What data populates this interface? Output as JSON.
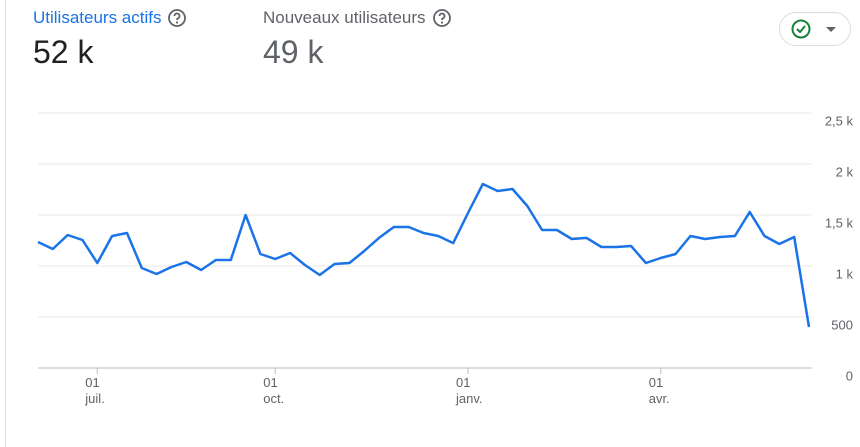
{
  "metrics": [
    {
      "label": "Utilisateurs actifs",
      "value": "52 k"
    },
    {
      "label": "Nouveaux utilisateurs",
      "value": "49 k"
    }
  ],
  "chart_data": {
    "type": "line",
    "categories": [
      null,
      null,
      null,
      null,
      "01\njuil.",
      null,
      null,
      null,
      null,
      null,
      null,
      null,
      null,
      null,
      null,
      null,
      "01\noct.",
      null,
      null,
      null,
      null,
      null,
      null,
      null,
      null,
      null,
      null,
      null,
      null,
      "01\njanv.",
      null,
      null,
      null,
      null,
      null,
      null,
      null,
      null,
      null,
      null,
      null,
      null,
      "01\navr.",
      null,
      null,
      null,
      null,
      null,
      null,
      null,
      null,
      null,
      null
    ],
    "series": [
      {
        "name": "Utilisateurs actifs",
        "color": "#1a73e8",
        "values": [
          1235,
          1167,
          1304,
          1255,
          1029,
          1294,
          1324,
          980,
          922,
          990,
          1039,
          961,
          1059,
          1059,
          1500,
          1118,
          1069,
          1127,
          1010,
          912,
          1020,
          1029,
          1147,
          1275,
          1382,
          1382,
          1324,
          1294,
          1225,
          1520,
          1804,
          1735,
          1755,
          1588,
          1353,
          1353,
          1265,
          1275,
          1186,
          1186,
          1196,
          1029,
          1078,
          1118,
          1294,
          1265,
          1284,
          1294,
          1529,
          1294,
          1216,
          1284,
          402
        ]
      }
    ],
    "ylim": [
      0,
      2500
    ],
    "yticks": [
      0,
      500,
      {
        "value": 1000,
        "label": "1 k"
      },
      {
        "value": 1500,
        "label": "1,5 k"
      },
      {
        "value": 2000,
        "label": "2 k"
      },
      {
        "value": 2500,
        "label": "2,5 k"
      }
    ],
    "grid": true
  }
}
